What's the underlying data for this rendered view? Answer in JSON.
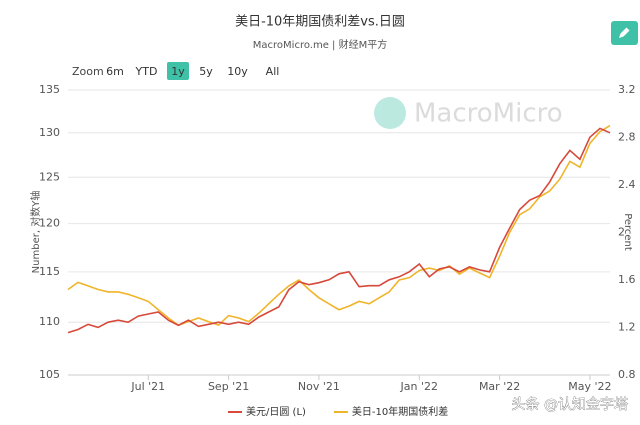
{
  "chart_data": {
    "type": "line",
    "title": "美日-10年期国债利差vs.日圆",
    "subtitle": "MacroMicro.me | 财经M平方",
    "range_selector": {
      "label": "Zoom",
      "buttons": [
        "6m",
        "YTD",
        "1y",
        "5y",
        "10y",
        "All"
      ],
      "active": "1y"
    },
    "watermark": "MacroMicro",
    "footer_watermark": "头条 @认知金字塔",
    "y_label": "Number, 对数Y轴",
    "y2_label": "Percent",
    "y_log": true,
    "grid": true,
    "ylim": [
      105,
      135
    ],
    "yticks": [
      105,
      110,
      115,
      120,
      125,
      130,
      135
    ],
    "y2lim": [
      0.8,
      3.2
    ],
    "y2ticks": [
      0.8,
      1.2,
      1.6,
      2,
      2.4,
      2.8,
      3.2
    ],
    "legend": "bottom",
    "categories": [
      null,
      null,
      null,
      null,
      null,
      null,
      null,
      null,
      "Jul '21",
      null,
      null,
      null,
      null,
      null,
      null,
      null,
      "Sep '21",
      null,
      null,
      null,
      null,
      null,
      null,
      null,
      null,
      "Nov '21",
      null,
      null,
      null,
      null,
      null,
      null,
      null,
      null,
      null,
      "Jan '22",
      null,
      null,
      null,
      null,
      null,
      null,
      null,
      "Mar '22",
      null,
      null,
      null,
      null,
      null,
      null,
      null,
      null,
      "May '22",
      null,
      null
    ],
    "series": [
      {
        "name": "美元/日圆 (L)",
        "color": "#d6493b",
        "axis": "y",
        "values": [
          109.0,
          109.3,
          109.8,
          109.5,
          110.0,
          110.2,
          110.0,
          110.6,
          110.8,
          111.0,
          110.2,
          109.7,
          110.2,
          109.6,
          109.8,
          110.0,
          109.8,
          110.0,
          109.8,
          110.5,
          111.0,
          111.5,
          113.2,
          114.0,
          113.7,
          113.9,
          114.2,
          114.8,
          115.0,
          113.5,
          113.6,
          113.6,
          114.2,
          114.5,
          115.0,
          115.8,
          114.5,
          115.3,
          115.5,
          115.0,
          115.5,
          115.2,
          115.0,
          117.5,
          119.5,
          121.5,
          122.5,
          123.0,
          124.5,
          126.5,
          128.0,
          127.0,
          129.5,
          130.5,
          130.0
        ]
      },
      {
        "name": "美日-10年期国债利差",
        "color": "#f0b429",
        "axis": "y2",
        "values": [
          1.52,
          1.58,
          1.55,
          1.52,
          1.5,
          1.5,
          1.48,
          1.45,
          1.42,
          1.35,
          1.28,
          1.22,
          1.25,
          1.28,
          1.25,
          1.22,
          1.3,
          1.28,
          1.25,
          1.32,
          1.4,
          1.48,
          1.55,
          1.6,
          1.52,
          1.45,
          1.4,
          1.35,
          1.38,
          1.42,
          1.4,
          1.45,
          1.5,
          1.6,
          1.62,
          1.68,
          1.7,
          1.68,
          1.72,
          1.65,
          1.7,
          1.66,
          1.62,
          1.8,
          2.0,
          2.15,
          2.2,
          2.3,
          2.35,
          2.45,
          2.6,
          2.55,
          2.75,
          2.85,
          2.9
        ]
      }
    ]
  }
}
